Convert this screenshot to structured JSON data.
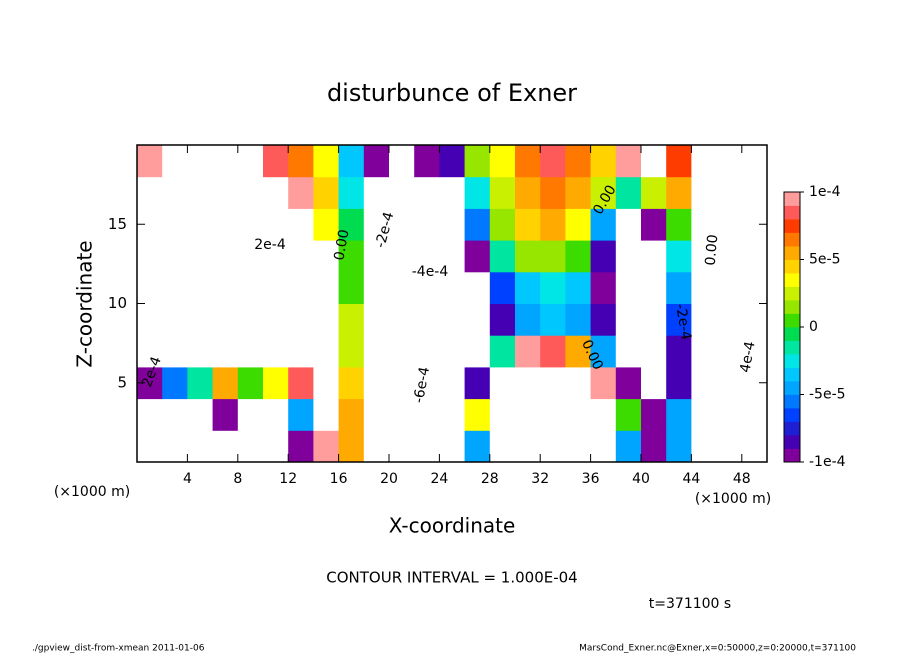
{
  "chart_data": {
    "type": "contour",
    "title": "disturbunce of Exner",
    "x_label": "X-coordinate",
    "y_label": "Z-coordinate",
    "x_unit": "(×1000 m)",
    "x_unit_right": "(×1000 m)",
    "contour_interval": "CONTOUR INTERVAL = 1.000E-04",
    "time_label": "t=371100 s",
    "footer_left": "./gpview_dist-from-xmean  2011-01-06",
    "footer_right": "MarsCond_Exner.nc@Exner,x=0:50000,z=0:20000,t=371100",
    "xlim": [
      0,
      50
    ],
    "ylim": [
      0,
      20
    ],
    "xticks": [
      4,
      8,
      12,
      16,
      20,
      24,
      28,
      32,
      36,
      40,
      44,
      48
    ],
    "yticks": [
      5,
      10,
      15
    ],
    "x": [
      1,
      3,
      5,
      7,
      9,
      11,
      13,
      15,
      17,
      19,
      21,
      23,
      25,
      27,
      29,
      31,
      33,
      35,
      37,
      39,
      41,
      43,
      45,
      47,
      49
    ],
    "y": [
      1,
      3,
      5,
      7,
      9,
      11,
      13,
      15,
      17,
      19
    ],
    "z": [
      [
        -0.0002,
        -0.0003,
        -0.0002,
        -0.00015,
        -0.0003,
        -0.0002,
        -0.0001,
        0.0001,
        5e-05,
        -0.0002,
        -0.0004,
        -0.0005,
        -0.0003,
        -5e-05,
        0.0002,
        0.0003,
        0.0004,
        0.0003,
        0.0002,
        -5e-05,
        -0.0001,
        -5e-05,
        0.0002,
        0.0003,
        0.0003
      ],
      [
        -0.0002,
        -0.0003,
        -0.0002,
        -0.0001,
        -0.0003,
        -0.0002,
        -5e-05,
        0.0002,
        5e-05,
        -0.0003,
        -0.0005,
        -0.0006,
        -0.0003,
        3e-05,
        0.0002,
        0.0003,
        0.0004,
        0.0003,
        0.0002,
        0,
        -0.0001,
        -5e-05,
        0.0002,
        0.0003,
        0.0003
      ],
      [
        -0.0001,
        -6e-05,
        -2e-05,
        5e-05,
        0,
        3e-05,
        8e-05,
        0.0002,
        4e-05,
        -0.0003,
        -0.0005,
        -0.0006,
        -0.0003,
        -8e-05,
        0.00015,
        0.00025,
        0.0003,
        0.00025,
        0.0001,
        -0.0001,
        -0.0002,
        -8e-05,
        0.00015,
        0.0003,
        0.0003
      ],
      [
        0.0003,
        0.0002,
        0.00015,
        0.00015,
        0.00015,
        0.0002,
        0.0002,
        0.00025,
        2e-05,
        -0.0002,
        -0.00035,
        -0.0004,
        -0.0002,
        -0.00015,
        -2e-05,
        9e-05,
        8e-05,
        5e-05,
        -5e-05,
        -0.0002,
        -0.00025,
        -8e-05,
        0.0002,
        0.0003,
        0.0003
      ],
      [
        0.0003,
        0.0003,
        0.0003,
        0.0003,
        0.0003,
        0.0003,
        0.0003,
        0.00025,
        2e-05,
        -0.0002,
        -0.0003,
        -0.00035,
        -0.00025,
        -0.00015,
        -8e-05,
        -5e-05,
        -4e-05,
        -5e-05,
        -8e-05,
        -0.0002,
        -0.00025,
        -7e-05,
        0.0002,
        0.0003,
        0.0003
      ],
      [
        0.0003,
        0.0003,
        0.0003,
        0.0003,
        0.0003,
        0.0003,
        0.00025,
        0.0002,
        0,
        -0.0002,
        -0.00035,
        -0.0004,
        -0.0003,
        -0.00015,
        -7e-05,
        -4e-05,
        -3e-05,
        -4e-05,
        -9e-05,
        -0.0002,
        -0.0002,
        -5e-05,
        0.00015,
        0.0003,
        0.0003
      ],
      [
        0.00025,
        0.0003,
        0.0003,
        0.00025,
        0.00025,
        0.00025,
        0.0002,
        0.00015,
        0,
        -0.0002,
        -0.0003,
        -0.00035,
        -0.00025,
        -0.0001,
        -2e-05,
        1e-05,
        1e-05,
        0,
        -8e-05,
        -0.00015,
        -0.00015,
        -3e-05,
        0.00015,
        0.0002,
        0.00025
      ],
      [
        0.0002,
        0.00025,
        0.00025,
        0.00025,
        0.0002,
        0.0002,
        0.00015,
        3e-05,
        -1e-05,
        -0.0002,
        -0.00025,
        -0.0003,
        -0.0002,
        -6e-05,
        1e-05,
        4e-05,
        5e-05,
        3e-05,
        -5e-05,
        -0.00015,
        -0.0001,
        0,
        0.00012,
        0.0002,
        0.0002
      ],
      [
        0.00015,
        0.0002,
        0.0002,
        0.0002,
        0.0002,
        0.00015,
        0.0001,
        4e-05,
        -3e-05,
        -0.00015,
        -0.0002,
        -0.0002,
        -0.00015,
        -3e-05,
        2e-05,
        5e-05,
        6e-05,
        5e-05,
        2e-05,
        -2e-05,
        2e-05,
        5e-05,
        0.00015,
        0.0002,
        0.0002
      ],
      [
        9e-05,
        0.00012,
        0.00015,
        0.00015,
        0.00015,
        8e-05,
        6e-05,
        3e-05,
        -4e-05,
        -0.0001,
        -0.00015,
        -0.0001,
        -8e-05,
        1e-05,
        3e-05,
        6e-05,
        8e-05,
        6e-05,
        4e-05,
        0.0001,
        0.00012,
        7e-05,
        0.00015,
        0.00015,
        0.00015
      ]
    ],
    "clim": [
      -0.0001,
      0.0001
    ],
    "cticks": [
      {
        "value": 0.0001,
        "label": "1e-4"
      },
      {
        "value": 5e-05,
        "label": "5e-5"
      },
      0,
      {
        "value": -5e-05,
        "label": "-5e-5"
      },
      {
        "value": -0.0001,
        "label": "-1e-4"
      }
    ],
    "colors": [
      "#80009c",
      "#4600b4",
      "#1e1ed2",
      "#0041ff",
      "#0078ff",
      "#00a5ff",
      "#00c8ff",
      "#00e6e6",
      "#00e6a0",
      "#00dc50",
      "#3cdc00",
      "#96e600",
      "#c8f000",
      "#ffff00",
      "#ffd200",
      "#ffaa00",
      "#ff7800",
      "#ff3c00",
      "#ff5a5a",
      "#ff9c9c"
    ],
    "contour_labels": [
      "2e-4",
      "0.00",
      "-2e-4",
      "-4e-4",
      "-6e-4",
      "0.00",
      "0.00",
      "-2e-4",
      "4e-4",
      "2e-4",
      "0.00"
    ]
  }
}
